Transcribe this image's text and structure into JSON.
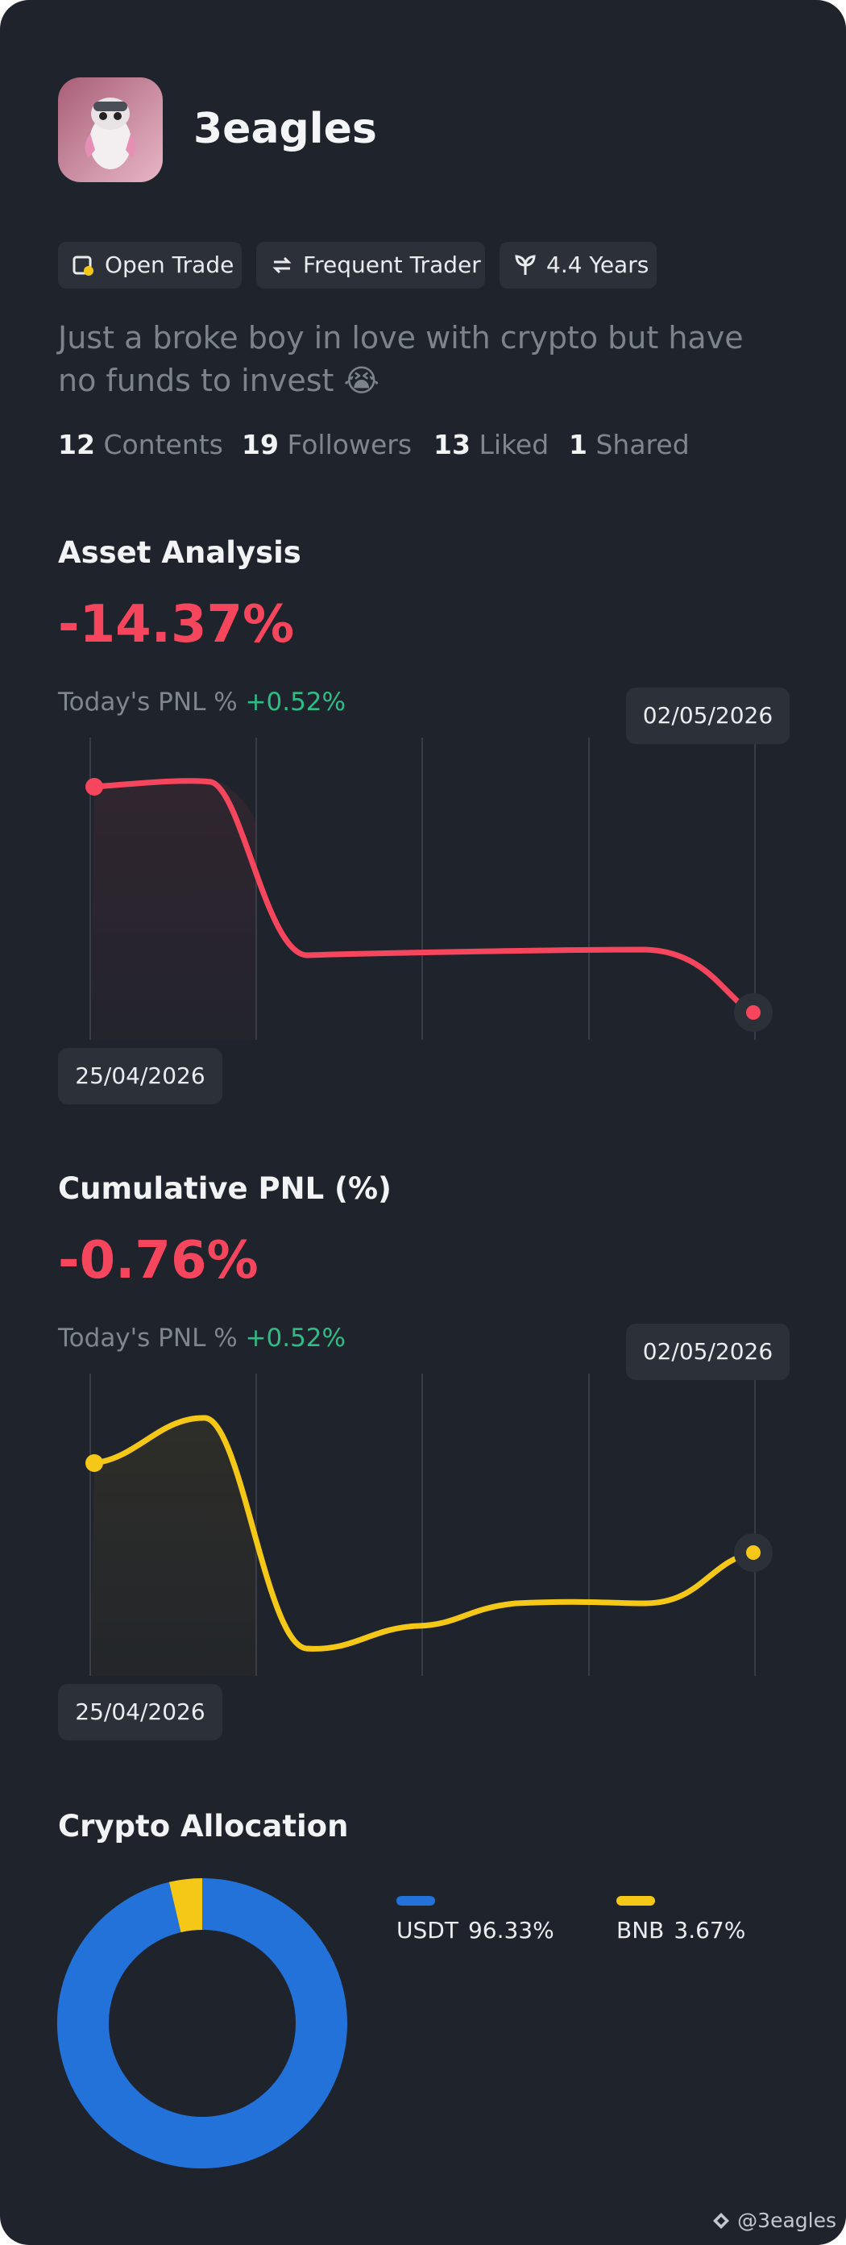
{
  "profile": {
    "name": "3eagles",
    "tags": [
      "Open Trade",
      "Frequent Trader",
      "4.4 Years"
    ],
    "bio": "Just a broke boy in love with crypto but have no funds to invest 😭",
    "stats": [
      {
        "value": 12,
        "label": "Contents"
      },
      {
        "value": 19,
        "label": "Followers"
      },
      {
        "value": 13,
        "label": "Liked"
      },
      {
        "value": 1,
        "label": "Shared"
      }
    ]
  },
  "asset_analysis": {
    "title": "Asset Analysis",
    "value": "-14.37%",
    "today_label": "Today's PNL %",
    "today_value": "+0.52%",
    "start_date": "25/04/2026",
    "end_date": "02/05/2026"
  },
  "cumulative_pnl": {
    "title": "Cumulative PNL (%)",
    "value": "-0.76%",
    "today_label": "Today's PNL %",
    "today_value": "+0.52%",
    "start_date": "25/04/2026",
    "end_date": "02/05/2026"
  },
  "crypto_allocation": {
    "title": "Crypto Allocation",
    "type": "donut",
    "categories": [
      "USDT",
      "BNB"
    ],
    "values": [
      96.33,
      3.67
    ],
    "value_labels": [
      "96.33%",
      "3.67%"
    ],
    "colors": [
      "#2372da",
      "#f5c817"
    ]
  },
  "footer": "@3eagles"
}
